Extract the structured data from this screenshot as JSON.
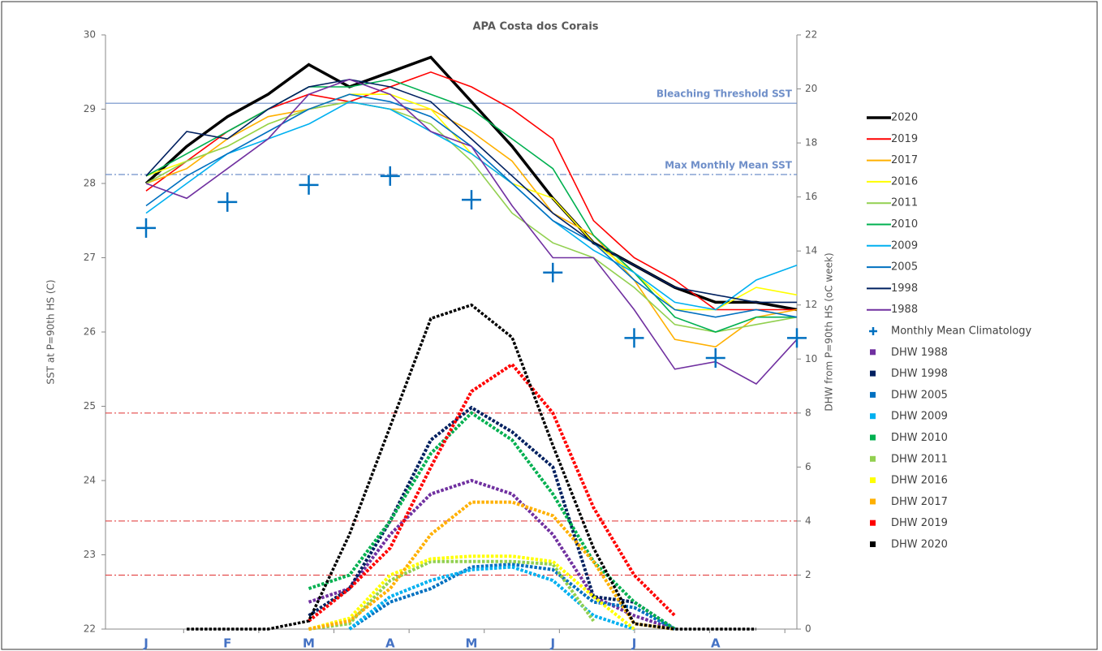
{
  "chart_data": {
    "type": "line",
    "title": "APA Costa dos Corais",
    "ylabel": "SST at P=90th HS (C)",
    "y2label": "DHW from P=90th HS (oC week)",
    "categories": [
      "J",
      null,
      "F",
      null,
      "M",
      null,
      "A",
      null,
      "M",
      null,
      "J",
      null,
      "J",
      null,
      "A",
      null,
      null
    ],
    "ylim": [
      22,
      30
    ],
    "yticks": [
      22,
      23,
      24,
      25,
      26,
      27,
      28,
      29,
      30
    ],
    "y2lim": [
      0,
      22
    ],
    "y2ticks": [
      0,
      2,
      4,
      6,
      8,
      10,
      12,
      14,
      16,
      18,
      20,
      22
    ],
    "reference_lines": [
      {
        "value": 29.08,
        "label": "Bleaching Threshold SST",
        "color": "#6f8fc9",
        "dash": "solid"
      },
      {
        "value": 28.12,
        "label": "Max Monthly Mean SST",
        "color": "#6f8fc9",
        "dash": "dashdot"
      }
    ],
    "dhw_lines": {
      "values": [
        8,
        4,
        2
      ],
      "color": "#e03030"
    },
    "series": [
      {
        "name": "2020",
        "color": "#000000",
        "width": 3.5,
        "values": [
          28.0,
          28.5,
          28.9,
          29.2,
          29.6,
          29.3,
          29.5,
          29.7,
          29.1,
          28.5,
          27.8,
          27.2,
          26.9,
          26.6,
          26.4,
          26.4,
          26.3
        ]
      },
      {
        "name": "2019",
        "color": "#ff0000",
        "values": [
          27.9,
          28.3,
          28.7,
          29.0,
          29.2,
          29.1,
          29.3,
          29.5,
          29.3,
          29.0,
          28.6,
          27.5,
          27.0,
          26.7,
          26.3,
          26.3,
          26.3
        ]
      },
      {
        "name": "2017",
        "color": "#ffb000",
        "values": [
          28.0,
          28.2,
          28.6,
          28.9,
          29.0,
          29.1,
          29.0,
          29.0,
          28.7,
          28.3,
          27.6,
          27.3,
          26.7,
          25.9,
          25.8,
          26.2,
          26.3
        ]
      },
      {
        "name": "2016",
        "color": "#ffff00",
        "values": [
          28.1,
          28.3,
          28.5,
          28.8,
          29.0,
          29.2,
          29.2,
          29.0,
          28.4,
          28.0,
          27.8,
          27.2,
          26.8,
          26.3,
          26.3,
          26.6,
          26.5
        ]
      },
      {
        "name": "2011",
        "color": "#92d050",
        "values": [
          28.0,
          28.3,
          28.5,
          28.8,
          29.0,
          29.1,
          29.0,
          28.8,
          28.3,
          27.6,
          27.2,
          27.0,
          26.6,
          26.1,
          26.0,
          26.1,
          26.2
        ]
      },
      {
        "name": "2010",
        "color": "#00b050",
        "values": [
          28.1,
          28.4,
          28.7,
          29.0,
          29.3,
          29.3,
          29.4,
          29.2,
          29.0,
          28.6,
          28.2,
          27.3,
          26.8,
          26.2,
          26.0,
          26.2,
          26.2
        ]
      },
      {
        "name": "2009",
        "color": "#00b0f0",
        "values": [
          27.6,
          28.0,
          28.4,
          28.6,
          28.8,
          29.1,
          29.0,
          28.7,
          28.4,
          28.0,
          27.5,
          27.1,
          26.8,
          26.4,
          26.3,
          26.7,
          26.9
        ]
      },
      {
        "name": "2005",
        "color": "#0070c0",
        "values": [
          27.7,
          28.1,
          28.4,
          28.7,
          29.0,
          29.2,
          29.1,
          28.9,
          28.5,
          28.0,
          27.5,
          27.2,
          26.7,
          26.3,
          26.2,
          26.3,
          26.2
        ]
      },
      {
        "name": "1998",
        "color": "#002060",
        "values": [
          28.1,
          28.7,
          28.6,
          29.0,
          29.3,
          29.4,
          29.3,
          29.1,
          28.6,
          28.1,
          27.6,
          27.2,
          26.9,
          26.6,
          26.5,
          26.4,
          26.4
        ]
      },
      {
        "name": "1988",
        "color": "#7030a0",
        "values": [
          28.0,
          27.8,
          28.2,
          28.6,
          29.2,
          29.4,
          29.2,
          28.7,
          28.5,
          27.7,
          27.0,
          27.0,
          26.3,
          25.5,
          25.6,
          25.3,
          25.9
        ]
      },
      {
        "name": "Monthly Mean Climatology",
        "color": "#0070c0",
        "marker": "plus",
        "values": [
          27.4,
          null,
          27.75,
          null,
          27.98,
          null,
          28.1,
          null,
          27.78,
          null,
          26.8,
          null,
          25.92,
          null,
          25.65,
          null,
          25.92
        ]
      },
      {
        "name": "DHW 1988",
        "color": "#7030a0",
        "axis": "y2",
        "marker": "square",
        "values": [
          null,
          null,
          null,
          null,
          1,
          1.5,
          3.5,
          5,
          5.5,
          5,
          3.5,
          1.2,
          0.5,
          0,
          null,
          null,
          null
        ]
      },
      {
        "name": "DHW 1998",
        "color": "#002060",
        "axis": "y2",
        "marker": "square",
        "values": [
          null,
          null,
          null,
          null,
          0.5,
          1.5,
          4,
          7,
          8.2,
          7.3,
          6,
          1.2,
          1,
          0,
          null,
          null,
          null
        ]
      },
      {
        "name": "DHW 2005",
        "color": "#0070c0",
        "axis": "y2",
        "marker": "square",
        "values": [
          null,
          null,
          null,
          null,
          null,
          0,
          1,
          1.5,
          2.3,
          2.4,
          2.2,
          1,
          0.8,
          0,
          null,
          null,
          null
        ]
      },
      {
        "name": "DHW 2009",
        "color": "#00b0f0",
        "axis": "y2",
        "marker": "square",
        "values": [
          null,
          null,
          null,
          null,
          null,
          0,
          1.2,
          1.8,
          2.2,
          2.3,
          1.8,
          0.5,
          0,
          null,
          null,
          null,
          null
        ]
      },
      {
        "name": "DHW 2010",
        "color": "#00b050",
        "axis": "y2",
        "marker": "square",
        "values": [
          null,
          null,
          null,
          null,
          1.5,
          2,
          4,
          6.5,
          8,
          7,
          5,
          2.5,
          1,
          0,
          null,
          null,
          null
        ]
      },
      {
        "name": "DHW 2011",
        "color": "#92d050",
        "axis": "y2",
        "marker": "square",
        "values": [
          null,
          null,
          null,
          null,
          0,
          0.2,
          1.8,
          2.5,
          2.5,
          2.5,
          2.4,
          0.3,
          null,
          null,
          null,
          null,
          null
        ]
      },
      {
        "name": "DHW 2016",
        "color": "#ffff00",
        "axis": "y2",
        "marker": "square",
        "values": [
          null,
          null,
          null,
          null,
          0,
          0.4,
          2,
          2.6,
          2.7,
          2.7,
          2.5,
          1.2,
          0,
          null,
          null,
          null,
          null
        ]
      },
      {
        "name": "DHW 2017",
        "color": "#ffb000",
        "axis": "y2",
        "marker": "square",
        "values": [
          null,
          null,
          null,
          null,
          0,
          0.3,
          1.5,
          3.5,
          4.7,
          4.7,
          4.2,
          2.5,
          0.2,
          0,
          null,
          null,
          null
        ]
      },
      {
        "name": "DHW 2019",
        "color": "#ff0000",
        "axis": "y2",
        "marker": "square",
        "values": [
          null,
          null,
          null,
          null,
          0.3,
          1.5,
          3,
          6,
          8.8,
          9.8,
          8,
          4.5,
          2,
          0.5,
          null,
          null,
          null
        ]
      },
      {
        "name": "DHW 2020",
        "color": "#000000",
        "axis": "y2",
        "marker": "square",
        "width": 3.5,
        "values": [
          null,
          0,
          0,
          0,
          0.3,
          3.5,
          7.5,
          11.5,
          12,
          10.8,
          6.8,
          3,
          0.2,
          0,
          0,
          0,
          null
        ]
      }
    ]
  }
}
